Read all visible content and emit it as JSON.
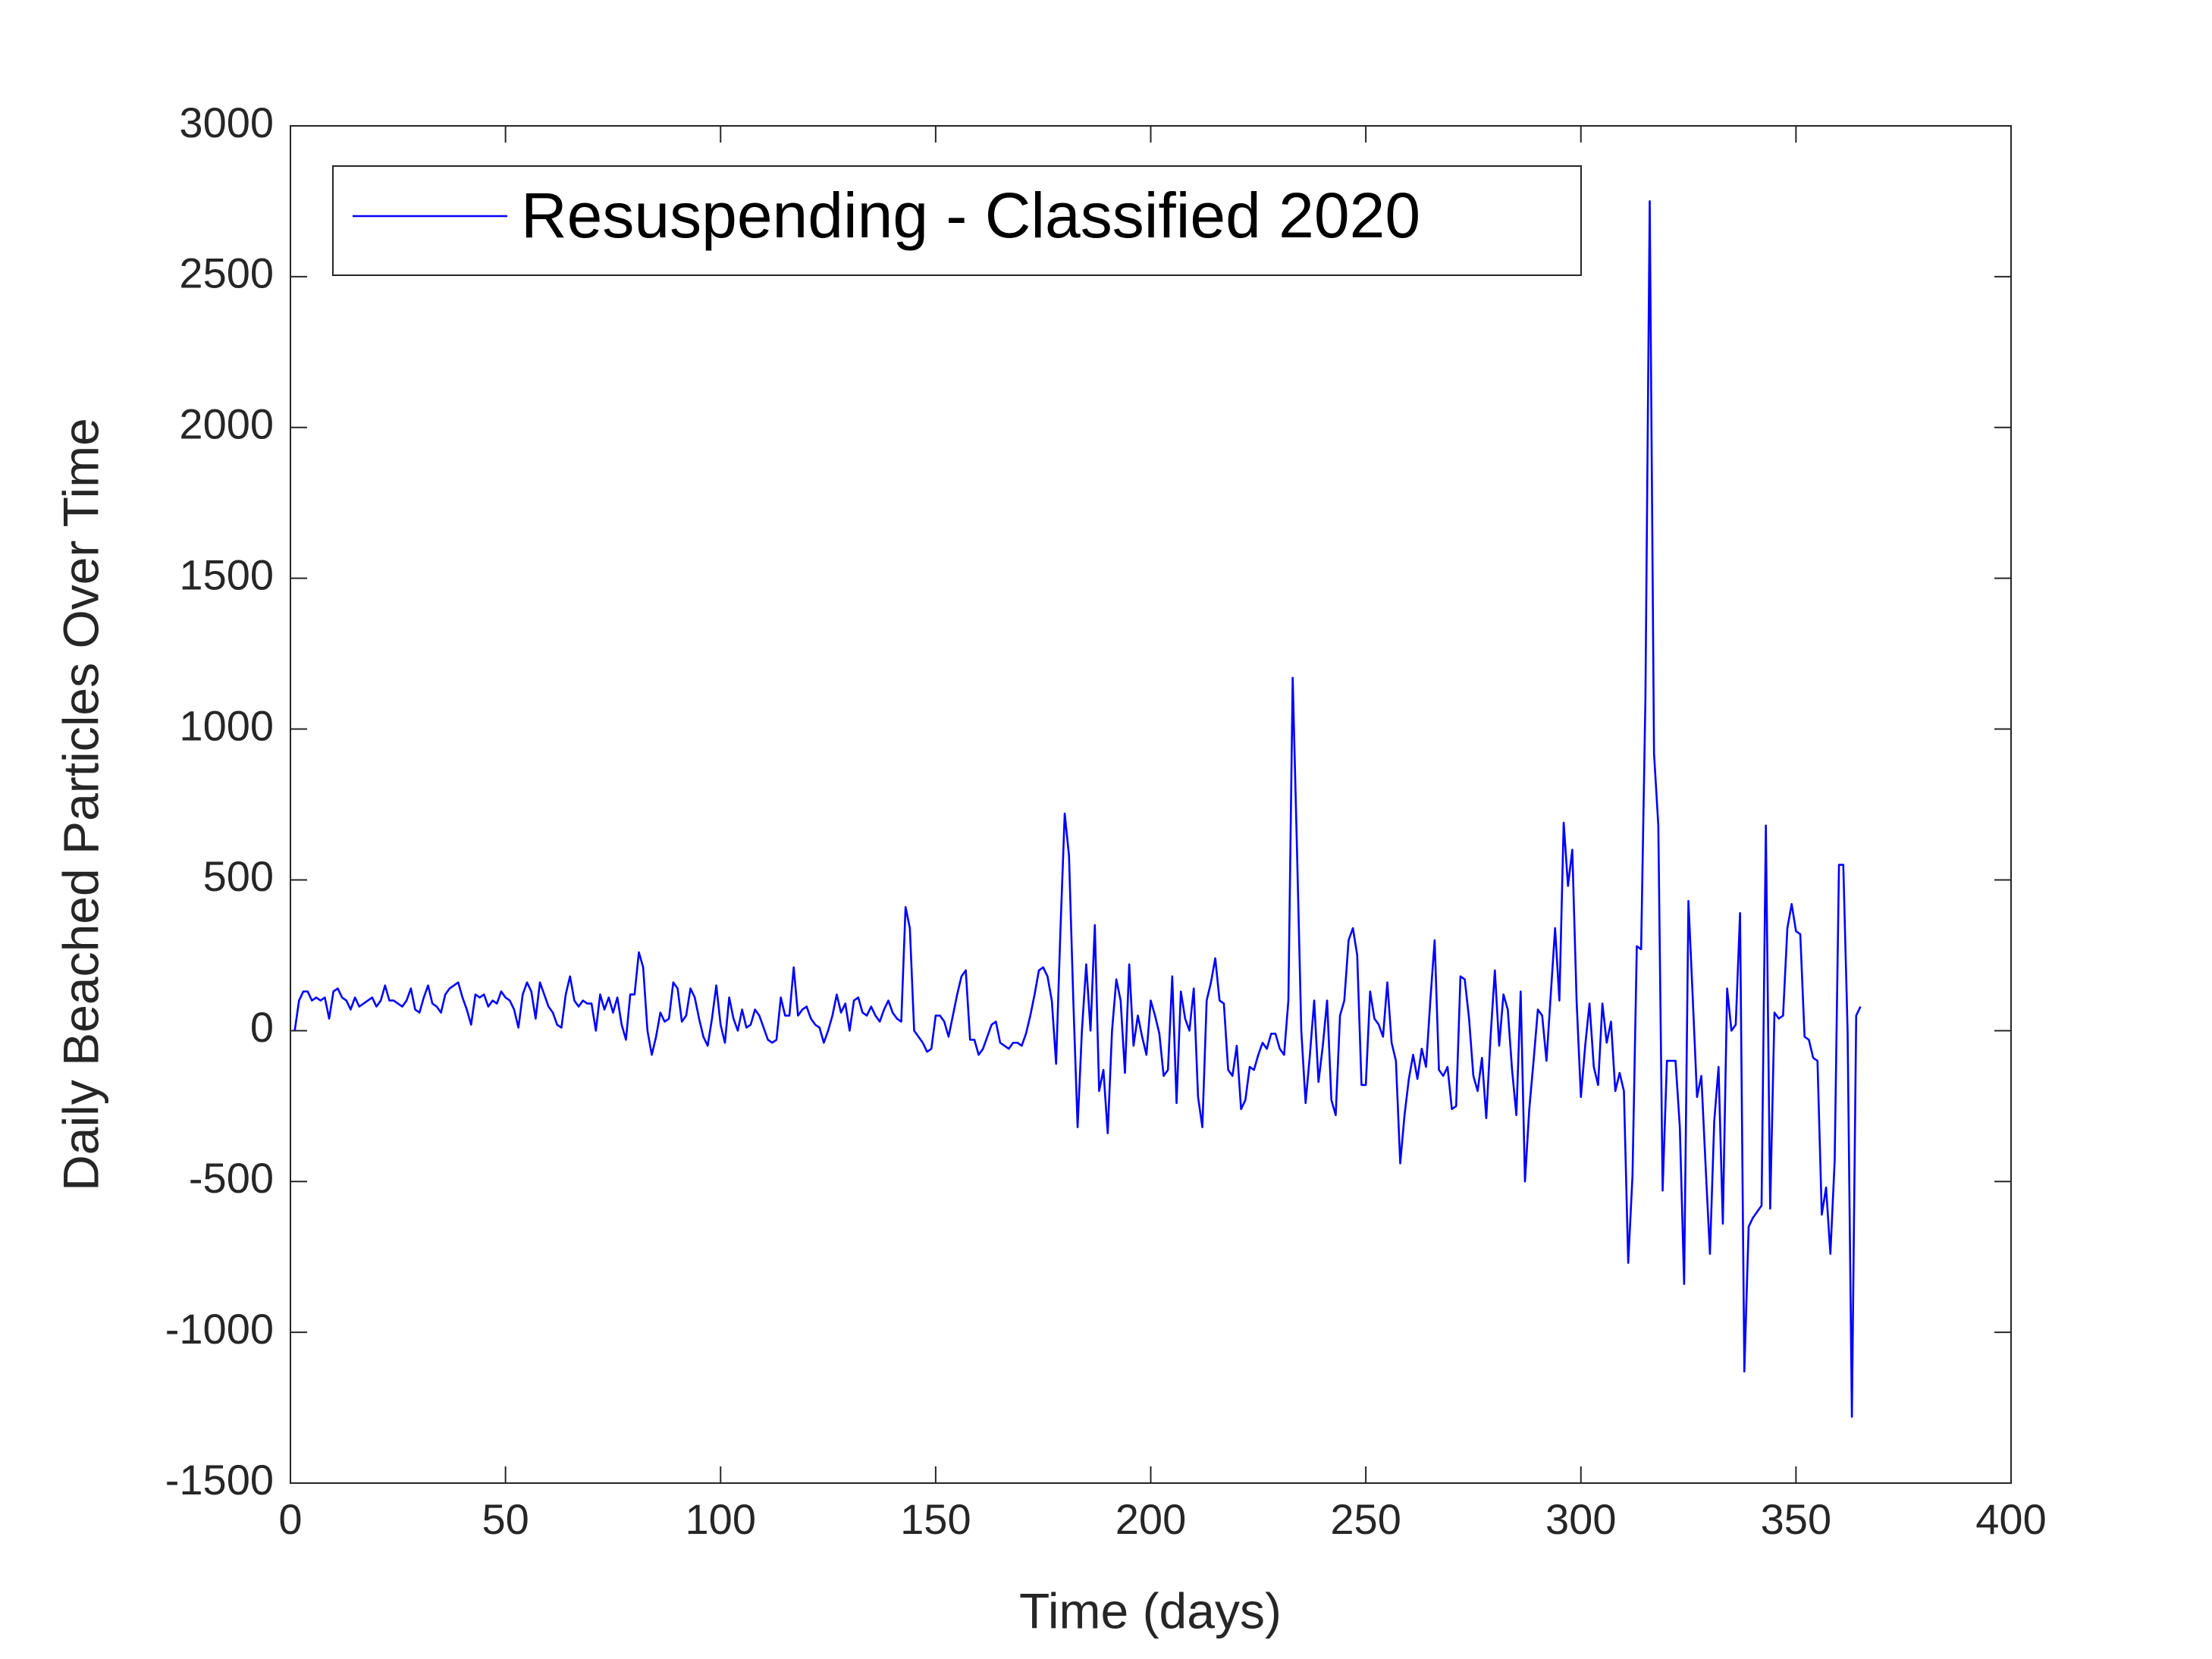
{
  "chart_data": {
    "type": "line",
    "xlabel": "Time (days)",
    "ylabel": "Daily Beached Particles Over Time",
    "xlim": [
      0,
      400
    ],
    "xticks": [
      0,
      50,
      100,
      150,
      200,
      250,
      300,
      350,
      400
    ],
    "ylim": [
      -1500,
      3000
    ],
    "yticks": [
      -1500,
      -1000,
      -500,
      0,
      500,
      1000,
      1500,
      2000,
      2500,
      3000
    ],
    "legend": "upper left",
    "x": [
      1,
      2,
      3,
      4,
      5,
      6,
      7,
      8,
      9,
      10,
      11,
      12,
      13,
      14,
      15,
      16,
      17,
      18,
      19,
      20,
      21,
      22,
      23,
      24,
      25,
      26,
      27,
      28,
      29,
      30,
      31,
      32,
      33,
      34,
      35,
      36,
      37,
      38,
      39,
      40,
      41,
      42,
      43,
      44,
      45,
      46,
      47,
      48,
      49,
      50,
      51,
      52,
      53,
      54,
      55,
      56,
      57,
      58,
      59,
      60,
      61,
      62,
      63,
      64,
      65,
      66,
      67,
      68,
      69,
      70,
      71,
      72,
      73,
      74,
      75,
      76,
      77,
      78,
      79,
      80,
      81,
      82,
      83,
      84,
      85,
      86,
      87,
      88,
      89,
      90,
      91,
      92,
      93,
      94,
      95,
      96,
      97,
      98,
      99,
      100,
      101,
      102,
      103,
      104,
      105,
      106,
      107,
      108,
      109,
      110,
      111,
      112,
      113,
      114,
      115,
      116,
      117,
      118,
      119,
      120,
      121,
      122,
      123,
      124,
      125,
      126,
      127,
      128,
      129,
      130,
      131,
      132,
      133,
      134,
      135,
      136,
      137,
      138,
      139,
      140,
      141,
      142,
      143,
      144,
      145,
      146,
      147,
      148,
      149,
      150,
      151,
      152,
      153,
      154,
      155,
      156,
      157,
      158,
      159,
      160,
      161,
      162,
      163,
      164,
      165,
      166,
      167,
      168,
      169,
      170,
      171,
      172,
      173,
      174,
      175,
      176,
      177,
      178,
      179,
      180,
      181,
      182,
      183,
      184,
      185,
      186,
      187,
      188,
      189,
      190,
      191,
      192,
      193,
      194,
      195,
      196,
      197,
      198,
      199,
      200,
      201,
      202,
      203,
      204,
      205,
      206,
      207,
      208,
      209,
      210,
      211,
      212,
      213,
      214,
      215,
      216,
      217,
      218,
      219,
      220,
      221,
      222,
      223,
      224,
      225,
      226,
      227,
      228,
      229,
      230,
      231,
      232,
      233,
      234,
      235,
      236,
      237,
      238,
      239,
      240,
      241,
      242,
      243,
      244,
      245,
      246,
      247,
      248,
      249,
      250,
      251,
      252,
      253,
      254,
      255,
      256,
      257,
      258,
      259,
      260,
      261,
      262,
      263,
      264,
      265,
      266,
      267,
      268,
      269,
      270,
      271,
      272,
      273,
      274,
      275,
      276,
      277,
      278,
      279,
      280,
      281,
      282,
      283,
      284,
      285,
      286,
      287,
      288,
      289,
      290,
      291,
      292,
      293,
      294,
      295,
      296,
      297,
      298,
      299,
      300,
      301,
      302,
      303,
      304,
      305,
      306,
      307,
      308,
      309,
      310,
      311,
      312,
      313,
      314,
      315,
      316,
      317,
      318,
      319,
      320,
      321,
      322,
      323,
      324,
      325,
      326,
      327,
      328,
      329,
      330,
      331,
      332,
      333,
      334,
      335,
      336,
      337,
      338,
      339,
      340,
      341,
      342,
      343,
      344,
      345,
      346,
      347,
      348,
      349,
      350,
      351,
      352,
      353,
      354,
      355,
      356,
      357,
      358,
      359,
      360,
      361,
      362,
      363,
      364,
      365
    ],
    "series": [
      {
        "name": "Resuspending - Classified 2020",
        "color": "#0000ff",
        "values": [
          0,
          100,
          130,
          130,
          100,
          110,
          100,
          110,
          40,
          130,
          140,
          110,
          100,
          70,
          110,
          80,
          90,
          100,
          110,
          80,
          100,
          150,
          100,
          100,
          90,
          80,
          100,
          140,
          70,
          60,
          110,
          150,
          90,
          80,
          60,
          120,
          140,
          150,
          160,
          110,
          70,
          20,
          120,
          110,
          120,
          80,
          100,
          90,
          130,
          110,
          100,
          70,
          10,
          120,
          160,
          130,
          40,
          160,
          120,
          80,
          60,
          20,
          10,
          120,
          180,
          100,
          80,
          100,
          90,
          90,
          0,
          120,
          70,
          110,
          60,
          110,
          20,
          -30,
          120,
          120,
          260,
          210,
          0,
          -80,
          -20,
          60,
          30,
          40,
          160,
          140,
          30,
          50,
          140,
          110,
          40,
          -20,
          -50,
          40,
          150,
          20,
          -40,
          110,
          40,
          0,
          70,
          10,
          20,
          70,
          50,
          10,
          -30,
          -40,
          -30,
          110,
          50,
          50,
          210,
          50,
          70,
          80,
          40,
          20,
          10,
          -40,
          0,
          50,
          120,
          60,
          90,
          0,
          100,
          110,
          60,
          50,
          80,
          50,
          30,
          70,
          100,
          60,
          40,
          30,
          410,
          340,
          0,
          -20,
          -40,
          -70,
          -60,
          50,
          50,
          30,
          -20,
          50,
          120,
          180,
          200,
          -30,
          -30,
          -80,
          -60,
          -20,
          20,
          30,
          -40,
          -50,
          -60,
          -40,
          -40,
          -50,
          -10,
          50,
          120,
          200,
          210,
          180,
          100,
          -110,
          330,
          720,
          580,
          100,
          -320,
          0,
          220,
          0,
          350,
          -200,
          -130,
          -340,
          0,
          170,
          100,
          -140,
          220,
          -50,
          50,
          -20,
          -80,
          100,
          50,
          -10,
          -150,
          -130,
          180,
          -240,
          130,
          40,
          0,
          140,
          -220,
          -320,
          100,
          160,
          240,
          100,
          90,
          -130,
          -150,
          -50,
          -260,
          -230,
          -120,
          -130,
          -80,
          -40,
          -60,
          -10,
          -10,
          -60,
          -80,
          100,
          1170,
          600,
          0,
          -240,
          -80,
          100,
          -170,
          -50,
          100,
          -230,
          -280,
          50,
          100,
          300,
          340,
          250,
          -180,
          -180,
          130,
          40,
          20,
          -20,
          160,
          -40,
          -100,
          -440,
          -280,
          -160,
          -80,
          -160,
          -60,
          -120,
          100,
          300,
          -130,
          -150,
          -120,
          -260,
          -250,
          180,
          170,
          40,
          -150,
          -200,
          -90,
          -290,
          -20,
          200,
          -50,
          120,
          70,
          -130,
          -280,
          130,
          -500,
          -260,
          -100,
          70,
          50,
          -100,
          120,
          340,
          100,
          690,
          480,
          600,
          100,
          -220,
          -50,
          90,
          -120,
          -180,
          90,
          -40,
          30,
          -200,
          -140,
          -200,
          -770,
          -480,
          280,
          270,
          1100,
          2750,
          920,
          680,
          -530,
          -100,
          -100,
          -100,
          -320,
          -840,
          430,
          110,
          -220,
          -150,
          -450,
          -740,
          -300,
          -120,
          -640,
          140,
          0,
          20,
          390,
          -1130,
          -650,
          -620,
          -600,
          -580,
          680,
          -590,
          60,
          40,
          50,
          340,
          420,
          330,
          320,
          -20,
          -30,
          -90,
          -100,
          -610,
          -520,
          -740,
          -430,
          550,
          550,
          0,
          -1280,
          50,
          80
        ]
      }
    ]
  }
}
